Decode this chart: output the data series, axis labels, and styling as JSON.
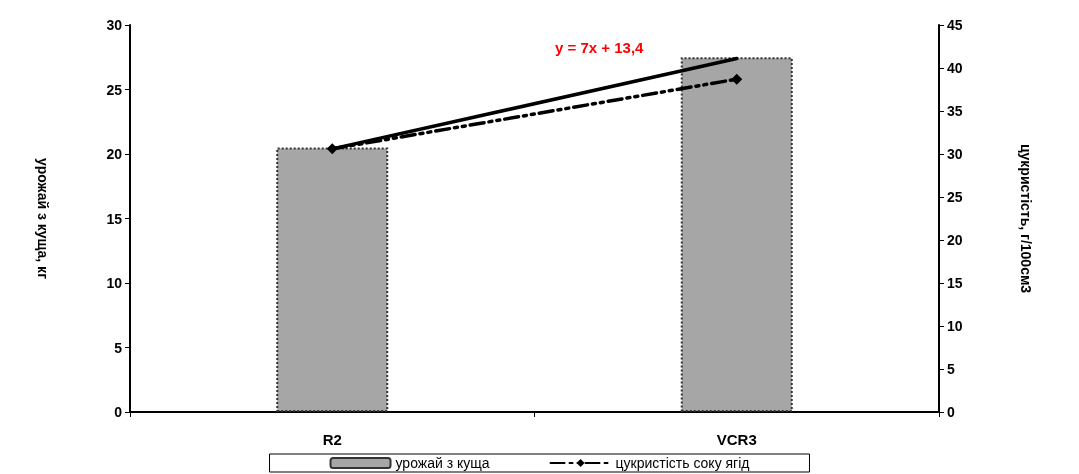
{
  "chart_data": {
    "type": "bar",
    "ylabel": "урожай з куща, кг",
    "y2label": "цукристість, г/100см3",
    "categories": [
      "R2",
      "VCR3"
    ],
    "series": [
      {
        "name": "урожай з куща",
        "color": "#a6a6a6",
        "values": [
          20.5,
          27.5
        ]
      },
      {
        "name": "цукристість соку ягід",
        "type": "line",
        "axis": "y2",
        "color": "#000000",
        "values": [
          30.6,
          38.7
        ],
        "marker": "diamond",
        "line_style": "dashed"
      },
      {
        "type": "line",
        "color": "#000000",
        "x": [
          "R2",
          "VCR3"
        ],
        "values": [
          20.4,
          27.4
        ],
        "line_style": "solid"
      }
    ],
    "ylim": [
      0,
      30
    ],
    "yticks": [
      0,
      5,
      10,
      15,
      20,
      25,
      30
    ],
    "y2lim": [
      0,
      45
    ],
    "y2ticks": [
      0,
      5,
      10,
      15,
      20,
      25,
      30,
      35,
      40,
      45
    ],
    "annotations": [
      "y = 7x + 13,4"
    ],
    "grid": false,
    "legend": "bottom"
  }
}
